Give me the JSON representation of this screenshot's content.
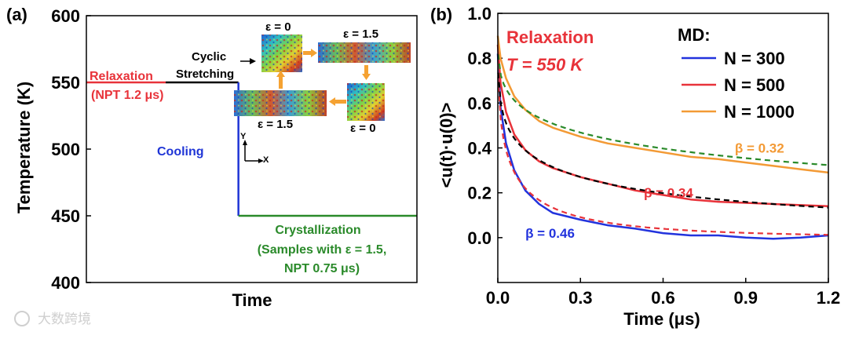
{
  "chart_data": [
    {
      "type": "line",
      "panel_label": "(a)",
      "xlabel": "Time",
      "ylabel": "Temperature (K)",
      "ylim": [
        400,
        600
      ],
      "y_ticks": [
        "400",
        "450",
        "500",
        "550",
        "600"
      ],
      "y_tick_values": [
        400,
        450,
        500,
        550,
        600
      ],
      "series": [
        {
          "name": "Relaxation",
          "color": "#e8333a",
          "x": [
            0,
            1.2
          ],
          "y": [
            550,
            550
          ]
        },
        {
          "name": "Cyclic Stretching",
          "color": "#000000",
          "x": [
            1.2,
            2.3
          ],
          "y": [
            550,
            550
          ]
        },
        {
          "name": "Cooling",
          "color": "#1f35d6",
          "x": [
            2.3,
            2.3
          ],
          "y": [
            550,
            450
          ]
        },
        {
          "name": "Crystallization",
          "color": "#2a8a2a",
          "x": [
            2.3,
            5.0
          ],
          "y": [
            450,
            450
          ]
        }
      ],
      "x_range": [
        0,
        5.0
      ],
      "annotations": {
        "relaxation_title": "Relaxation",
        "relaxation_sub": "(NPT 1.2 μs)",
        "cyclic_1": "Cyclic",
        "cyclic_2": "Stretching",
        "cooling": "Cooling",
        "cryst_1": "Crystallization",
        "cryst_2": "(Samples with ε = 1.5,",
        "cryst_3": "NPT 0.75 μs)",
        "strain_tl": "ε = 0",
        "strain_tr": "ε = 1.5",
        "strain_bl": "ε = 1.5",
        "strain_br": "ε = 0",
        "axis_y": "Y",
        "axis_x": "X"
      },
      "colors": {
        "relax": "#e8333a",
        "cool": "#1f35d6",
        "cryst": "#2a8a2a",
        "arrow": "#f5a232"
      }
    },
    {
      "type": "line",
      "panel_label": "(b)",
      "xlabel": "Time (μs)",
      "ylabel": "<u(t)·u(0)>",
      "xlim": [
        0,
        1.2
      ],
      "ylim": [
        -0.2,
        1.0
      ],
      "x_ticks": [
        "0.0",
        "0.3",
        "0.6",
        "0.9",
        "1.2"
      ],
      "x_tick_values": [
        0,
        0.3,
        0.6,
        0.9,
        1.2
      ],
      "y_ticks": [
        "0.0",
        "0.2",
        "0.4",
        "0.6",
        "0.8",
        "1.0"
      ],
      "y_tick_values": [
        0,
        0.2,
        0.4,
        0.6,
        0.8,
        1.0
      ],
      "title_1": "Relaxation",
      "title_2": "T = 550 K",
      "legend_title": "MD:",
      "series": [
        {
          "name": "N = 300",
          "color": "#2233dd",
          "beta_label": "β = 0.46",
          "beta_x": 0.1,
          "beta_y": 0.02,
          "x": [
            0,
            0.01,
            0.03,
            0.06,
            0.1,
            0.15,
            0.2,
            0.3,
            0.4,
            0.5,
            0.6,
            0.7,
            0.8,
            0.9,
            1.0,
            1.1,
            1.2
          ],
          "y": [
            0.82,
            0.58,
            0.42,
            0.3,
            0.21,
            0.15,
            0.11,
            0.08,
            0.055,
            0.04,
            0.02,
            0.01,
            0.01,
            0.0,
            -0.005,
            0.0,
            0.01
          ]
        },
        {
          "name": "N = 500",
          "color": "#e8333a",
          "beta_label": "β = 0.34",
          "beta_x": 0.53,
          "beta_y": 0.2,
          "x": [
            0,
            0.01,
            0.03,
            0.06,
            0.1,
            0.15,
            0.2,
            0.3,
            0.4,
            0.5,
            0.6,
            0.7,
            0.8,
            0.9,
            1.0,
            1.1,
            1.2
          ],
          "y": [
            0.86,
            0.69,
            0.56,
            0.46,
            0.39,
            0.34,
            0.31,
            0.27,
            0.24,
            0.21,
            0.19,
            0.17,
            0.16,
            0.155,
            0.15,
            0.145,
            0.14
          ]
        },
        {
          "name": "N = 1000",
          "color": "#f39a35",
          "beta_label": "β = 0.32",
          "beta_x": 0.95,
          "beta_y": 0.4,
          "x": [
            0,
            0.01,
            0.03,
            0.06,
            0.1,
            0.15,
            0.2,
            0.3,
            0.4,
            0.5,
            0.6,
            0.7,
            0.8,
            0.9,
            1.0,
            1.1,
            1.2
          ],
          "y": [
            0.9,
            0.8,
            0.71,
            0.63,
            0.57,
            0.52,
            0.49,
            0.45,
            0.42,
            0.4,
            0.38,
            0.36,
            0.35,
            0.335,
            0.32,
            0.305,
            0.29
          ]
        }
      ],
      "fits": [
        {
          "color": "#e8333a",
          "A": 0.84,
          "tau": 0.053,
          "beta": 0.46
        },
        {
          "color": "#000000",
          "A": 0.87,
          "tau": 0.19,
          "beta": 0.34
        },
        {
          "color": "#2a8a2a",
          "A": 0.91,
          "tau": 1.08,
          "beta": 0.32
        }
      ]
    }
  ],
  "watermark": "大数跨境"
}
